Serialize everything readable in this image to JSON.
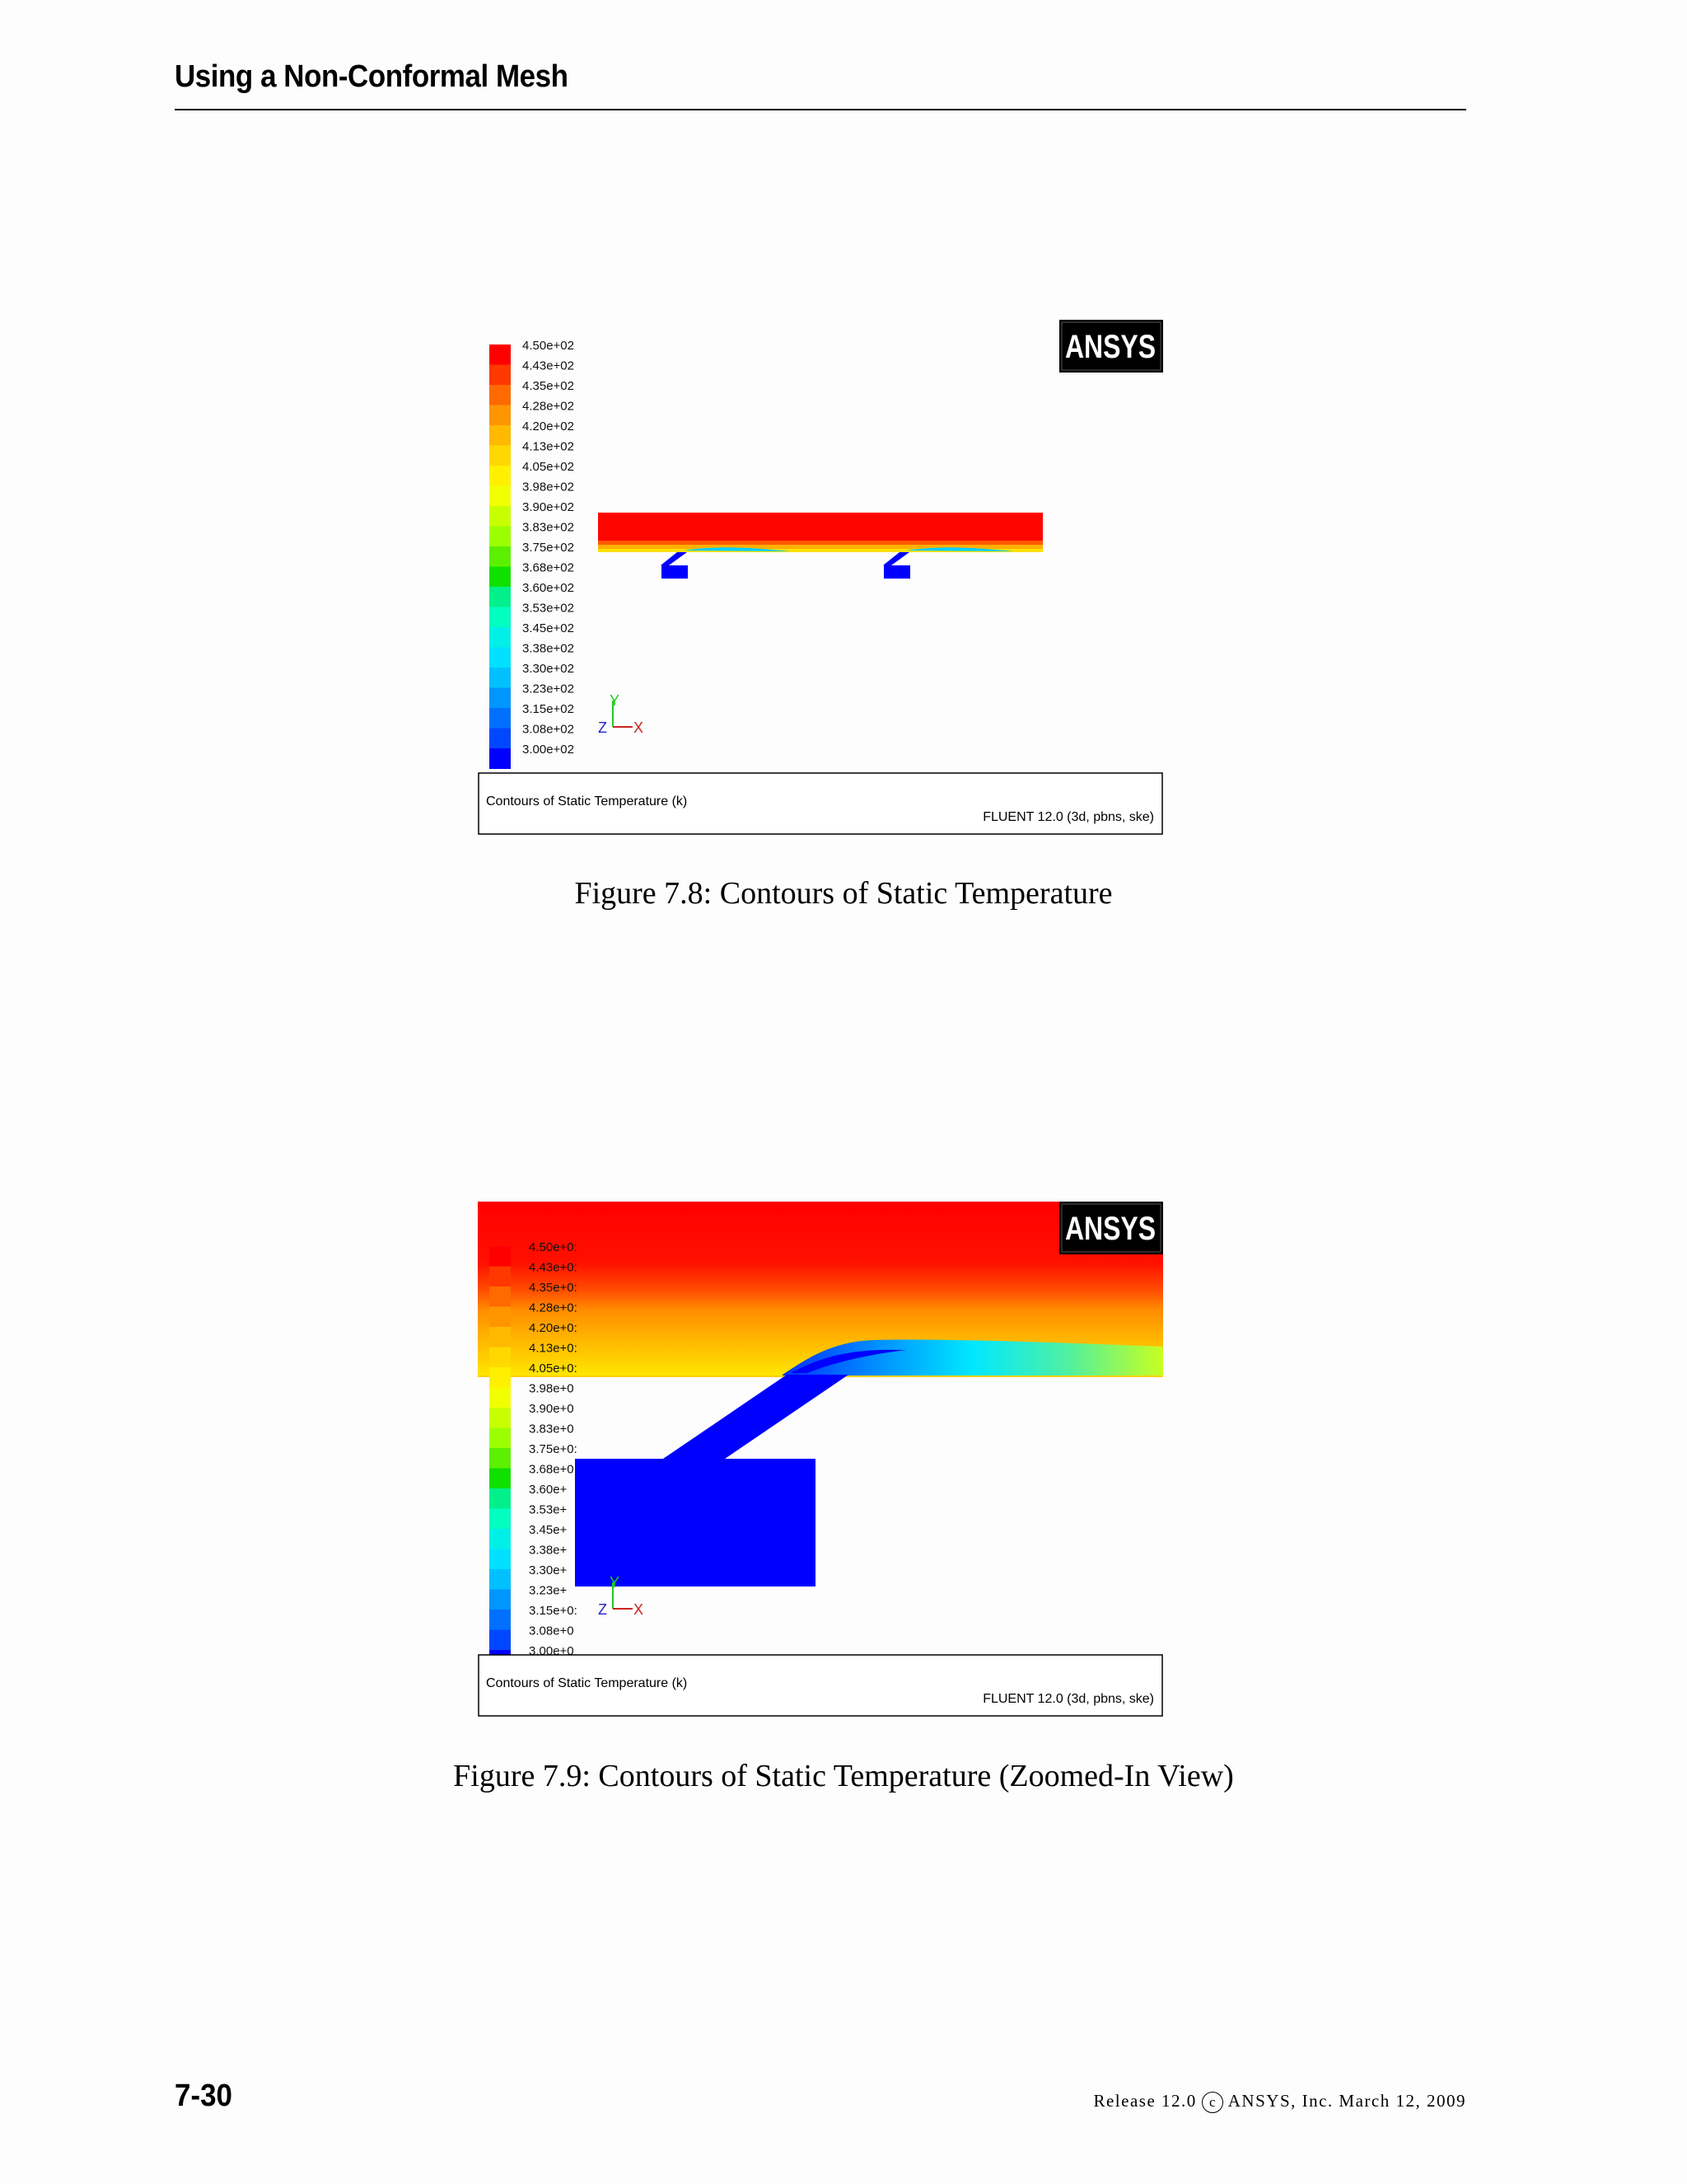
{
  "header": {
    "title": "Using a Non-Conformal Mesh"
  },
  "colormap": {
    "labels": [
      "4.50e+02",
      "4.43e+02",
      "4.35e+02",
      "4.28e+02",
      "4.20e+02",
      "4.13e+02",
      "4.05e+02",
      "3.98e+02",
      "3.90e+02",
      "3.83e+02",
      "3.75e+02",
      "3.68e+02",
      "3.60e+02",
      "3.53e+02",
      "3.45e+02",
      "3.38e+02",
      "3.30e+02",
      "3.23e+02",
      "3.15e+02",
      "3.08e+02",
      "3.00e+02"
    ],
    "labels_truncated": [
      "4.50e+0:",
      "4.43e+0:",
      "4.35e+0:",
      "4.28e+0:",
      "4.20e+0:",
      "4.13e+0:",
      "4.05e+0:",
      "3.98e+0",
      "3.90e+0",
      "3.83e+0",
      "3.75e+0:",
      "3.68e+0",
      "3.60e+",
      "3.53e+",
      "3.45e+",
      "3.38e+",
      "3.30e+",
      "3.23e+",
      "3.15e+0:",
      "3.08e+0",
      "3.00e+0"
    ],
    "colors": [
      "#ff0000",
      "#ff3800",
      "#ff6a00",
      "#ff9600",
      "#ffba00",
      "#ffd800",
      "#fff000",
      "#f2ff00",
      "#c8ff00",
      "#9cff00",
      "#5cf000",
      "#10e000",
      "#00f08c",
      "#00ffc0",
      "#00f0e8",
      "#00e0ff",
      "#00c0ff",
      "#0096ff",
      "#0070ff",
      "#0048ff",
      "#0000ff"
    ]
  },
  "figures": [
    {
      "logo_text": "ANSYS",
      "axes": {
        "y": "Y",
        "z": "Z",
        "x": "X"
      },
      "footer_left": "Contours of Static Temperature (k)",
      "footer_right": "FLUENT 12.0 (3d, pbns, ske)",
      "caption": "Figure 7.8: Contours of Static Temperature"
    },
    {
      "logo_text": "ANSYS",
      "axes": {
        "y": "Y",
        "z": "Z",
        "x": "X"
      },
      "footer_left": "Contours of Static Temperature (k)",
      "footer_right": "FLUENT 12.0 (3d, pbns, ske)",
      "caption": "Figure 7.9: Contours of Static Temperature (Zoomed-In View)"
    }
  ],
  "footer": {
    "page_number": "7-30",
    "release_prefix": "Release 12.0",
    "copyright_symbol": "c",
    "release_suffix": "ANSYS, Inc. March 12, 2009"
  }
}
